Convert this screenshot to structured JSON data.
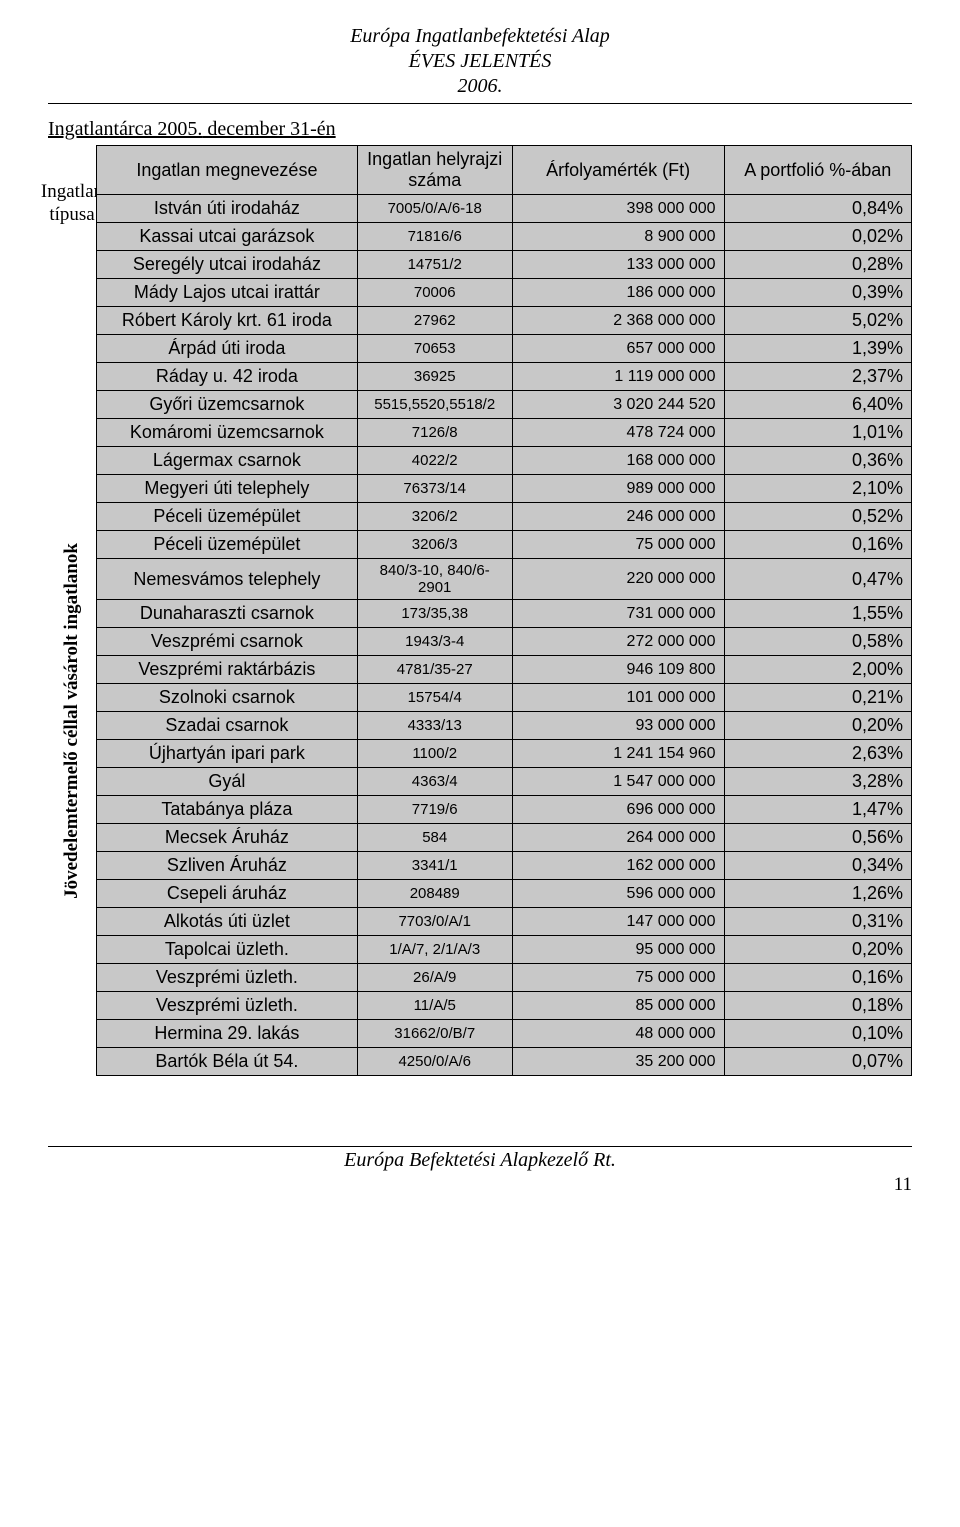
{
  "header": {
    "line1": "Európa Ingatlanbefektetési Alap",
    "line2": "ÉVES JELENTÉS",
    "line3": "2006."
  },
  "section": {
    "title": "Ingatlantárca 2005. december 31-én",
    "title_u": "Ingatlantárca 2005.",
    "title_rest": " december 31-én"
  },
  "sidebar": {
    "top1": "Ingatlan",
    "top2": "típusa",
    "rotated": "Jövedelemtermelő céllal vásárolt ingatlanok"
  },
  "table": {
    "columns": [
      "Ingatlan megnevezése",
      "Ingatlan helyrajzi száma",
      "Árfolyamérték (Ft)",
      "A portfolió %-ában"
    ],
    "rows": [
      [
        "István úti irodaház",
        "7005/0/A/6-18",
        "398 000 000",
        "0,84%"
      ],
      [
        "Kassai utcai garázsok",
        "71816/6",
        "8 900 000",
        "0,02%"
      ],
      [
        "Seregély utcai irodaház",
        "14751/2",
        "133 000 000",
        "0,28%"
      ],
      [
        "Mády Lajos utcai irattár",
        "70006",
        "186 000 000",
        "0,39%"
      ],
      [
        "Róbert Károly krt. 61 iroda",
        "27962",
        "2 368 000 000",
        "5,02%"
      ],
      [
        "Árpád úti iroda",
        "70653",
        "657 000 000",
        "1,39%"
      ],
      [
        "Ráday u. 42 iroda",
        "36925",
        "1 119 000 000",
        "2,37%"
      ],
      [
        "Győri üzemcsarnok",
        "5515,5520,5518/2",
        "3 020 244 520",
        "6,40%"
      ],
      [
        "Komáromi üzemcsarnok",
        "7126/8",
        "478 724 000",
        "1,01%"
      ],
      [
        "Lágermax csarnok",
        "4022/2",
        "168 000 000",
        "0,36%"
      ],
      [
        "Megyeri úti telephely",
        "76373/14",
        "989 000 000",
        "2,10%"
      ],
      [
        "Péceli üzemépület",
        "3206/2",
        "246 000 000",
        "0,52%"
      ],
      [
        "Péceli üzemépület",
        "3206/3",
        "75 000 000",
        "0,16%"
      ],
      [
        "Nemesvámos telephely",
        "840/3-10, 840/6-2901",
        "220 000 000",
        "0,47%"
      ],
      [
        "Dunaharaszti csarnok",
        "173/35,38",
        "731 000 000",
        "1,55%"
      ],
      [
        "Veszprémi csarnok",
        "1943/3-4",
        "272 000 000",
        "0,58%"
      ],
      [
        "Veszprémi raktárbázis",
        "4781/35-27",
        "946 109 800",
        "2,00%"
      ],
      [
        "Szolnoki csarnok",
        "15754/4",
        "101 000 000",
        "0,21%"
      ],
      [
        "Szadai csarnok",
        "4333/13",
        "93 000 000",
        "0,20%"
      ],
      [
        "Újhartyán ipari park",
        "1100/2",
        "1 241 154 960",
        "2,63%"
      ],
      [
        "Gyál",
        "4363/4",
        "1 547 000 000",
        "3,28%"
      ],
      [
        "Tatabánya pláza",
        "7719/6",
        "696 000 000",
        "1,47%"
      ],
      [
        "Mecsek Áruház",
        "584",
        "264 000 000",
        "0,56%"
      ],
      [
        "Szliven Áruház",
        "3341/1",
        "162 000 000",
        "0,34%"
      ],
      [
        "Csepeli áruház",
        "208489",
        "596 000 000",
        "1,26%"
      ],
      [
        "Alkotás úti üzlet",
        "7703/0/A/1",
        "147 000 000",
        "0,31%"
      ],
      [
        "Tapolcai üzleth.",
        "1/A/7, 2/1/A/3",
        "95 000 000",
        "0,20%"
      ],
      [
        "Veszprémi üzleth.",
        "26/A/9",
        "75 000 000",
        "0,16%"
      ],
      [
        "Veszprémi üzleth.",
        "11/A/5",
        "85 000 000",
        "0,18%"
      ],
      [
        "Hermina 29. lakás",
        "31662/0/B/7",
        "48 000 000",
        "0,10%"
      ],
      [
        "Bartók Béla út 54.",
        "4250/0/A/6",
        "35 200 000",
        "0,07%"
      ]
    ]
  },
  "footer": {
    "text": "Európa Befektetési Alapkezelő Rt.",
    "page": "11"
  },
  "style": {
    "shade": "#c8c8c8",
    "border": "#000000",
    "bg": "#ffffff",
    "font_body": "Times New Roman",
    "font_table": "Arial"
  }
}
